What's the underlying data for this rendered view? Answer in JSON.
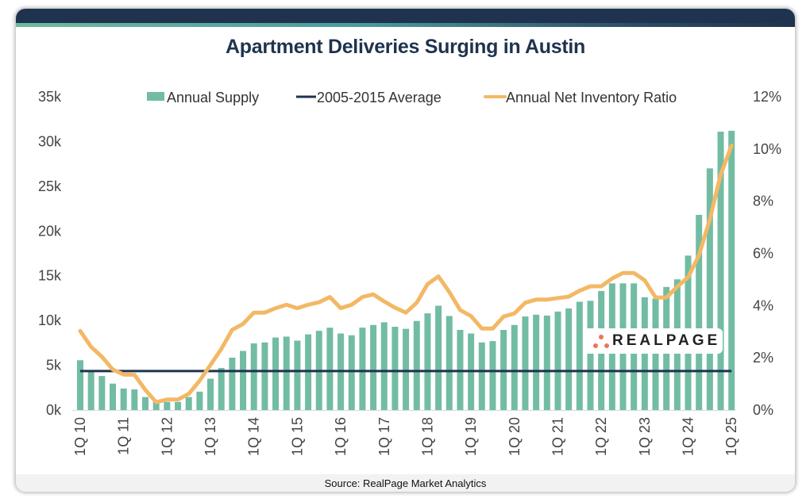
{
  "title": "Apartment Deliveries Surging in Austin",
  "source": "Source: RealPage Market Analytics",
  "logo_text": "REALPAGE",
  "colors": {
    "header": "#1f334e",
    "bars": "#72bca4",
    "average_line": "#1f334e",
    "ratio_line": "#f3b865"
  },
  "chart_data": {
    "type": "bar",
    "title": "Apartment Deliveries Surging in Austin",
    "xlabel": "",
    "ylabel": "",
    "ylim": [
      0,
      35000
    ],
    "y2lim": [
      0,
      12
    ],
    "y_ticks": [
      "0k",
      "5k",
      "10k",
      "15k",
      "20k",
      "25k",
      "30k",
      "35k"
    ],
    "y2_ticks": [
      "0%",
      "2%",
      "4%",
      "6%",
      "8%",
      "10%",
      "12%"
    ],
    "x_tick_labels": [
      "1Q 10",
      "1Q 11",
      "1Q 12",
      "1Q 13",
      "1Q 14",
      "1Q 15",
      "1Q 16",
      "1Q 17",
      "1Q 18",
      "1Q 19",
      "1Q 20",
      "1Q 21",
      "1Q 22",
      "1Q 23",
      "1Q 24",
      "1Q 25"
    ],
    "legend": [
      "Annual Supply",
      "2005-2015 Average",
      "Annual Net Inventory Ratio"
    ],
    "legend_position": "top",
    "grid": false,
    "categories": [
      "1Q10",
      "2Q10",
      "3Q10",
      "4Q10",
      "1Q11",
      "2Q11",
      "3Q11",
      "4Q11",
      "1Q12",
      "2Q12",
      "3Q12",
      "4Q12",
      "1Q13",
      "2Q13",
      "3Q13",
      "4Q13",
      "1Q14",
      "2Q14",
      "3Q14",
      "4Q14",
      "1Q15",
      "2Q15",
      "3Q15",
      "4Q15",
      "1Q16",
      "2Q16",
      "3Q16",
      "4Q16",
      "1Q17",
      "2Q17",
      "3Q17",
      "4Q17",
      "1Q18",
      "2Q18",
      "3Q18",
      "4Q18",
      "1Q19",
      "2Q19",
      "3Q19",
      "4Q19",
      "1Q20",
      "2Q20",
      "3Q20",
      "4Q20",
      "1Q21",
      "2Q21",
      "3Q21",
      "4Q21",
      "1Q22",
      "2Q22",
      "3Q22",
      "4Q22",
      "1Q23",
      "2Q23",
      "3Q23",
      "4Q23",
      "1Q24",
      "2Q24",
      "3Q24",
      "4Q24",
      "1Q25"
    ],
    "series": [
      {
        "name": "Annual Supply",
        "type": "bar",
        "axis": "left",
        "values": [
          5560,
          4350,
          3800,
          2950,
          2400,
          2300,
          1450,
          900,
          900,
          900,
          1450,
          2050,
          3500,
          4700,
          5850,
          6600,
          7450,
          7550,
          8100,
          8200,
          7750,
          8450,
          8850,
          9200,
          8550,
          8350,
          9200,
          9500,
          9800,
          9300,
          9070,
          9950,
          10800,
          11650,
          10500,
          8950,
          8550,
          7550,
          7700,
          8950,
          9500,
          10450,
          10650,
          10550,
          11000,
          11350,
          12100,
          12200,
          13300,
          14150,
          14150,
          14150,
          12600,
          12450,
          13750,
          14600,
          17250,
          21800,
          27000,
          31100,
          31200
        ]
      },
      {
        "name": "2005-2015 Average",
        "type": "line",
        "axis": "left",
        "value": 4350
      },
      {
        "name": "Annual Net Inventory Ratio",
        "type": "line",
        "axis": "right",
        "unit": "%",
        "values": [
          3.03,
          2.42,
          2.04,
          1.55,
          1.36,
          1.35,
          0.77,
          0.3,
          0.4,
          0.4,
          0.62,
          1.12,
          1.73,
          2.34,
          3.07,
          3.3,
          3.73,
          3.73,
          3.9,
          4.03,
          3.9,
          4.03,
          4.13,
          4.33,
          3.9,
          4.03,
          4.33,
          4.43,
          4.16,
          3.92,
          3.73,
          4.11,
          4.82,
          5.12,
          4.52,
          3.83,
          3.6,
          3.12,
          3.12,
          3.58,
          3.7,
          4.11,
          4.23,
          4.23,
          4.29,
          4.34,
          4.57,
          4.74,
          4.74,
          5.04,
          5.25,
          5.25,
          4.97,
          4.31,
          4.31,
          4.72,
          5.09,
          5.93,
          7.3,
          9.02,
          10.13
        ]
      }
    ]
  }
}
